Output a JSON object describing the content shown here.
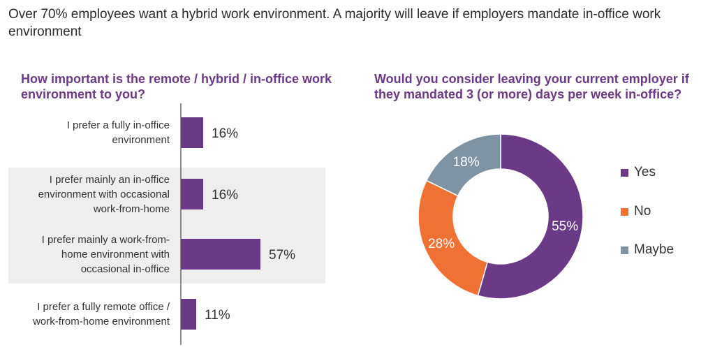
{
  "headline": "Over 70% employees want a hybrid work environment. A majority will leave if employers mandate in-office work environment",
  "chart_data": [
    {
      "type": "bar",
      "orientation": "horizontal",
      "title": "How important is the remote / hybrid / in-office work environment to you?",
      "categories": [
        "I prefer a fully in-office environment",
        "I prefer mainly an in-office environment with occasional work-from-home",
        "I prefer mainly a work-from-home environment with occasional in-office",
        "I prefer a fully remote office / work-from-home environment"
      ],
      "values": [
        16,
        16,
        57,
        11
      ],
      "value_labels": [
        "16%",
        "16%",
        "57%",
        "11%"
      ],
      "unit": "%",
      "xlim": [
        0,
        100
      ],
      "highlighted_rows": [
        1,
        2
      ],
      "bar_color": "#6b3a86",
      "highlight_color": "#eeeeee"
    },
    {
      "type": "pie",
      "style": "donut",
      "title": "Would you consider leaving your current employer if they mandated 3 (or more) days per week in-office?",
      "labels": [
        "Yes",
        "No",
        "Maybe"
      ],
      "values": [
        55,
        28,
        18
      ],
      "value_labels": [
        "55%",
        "28%",
        "18%"
      ],
      "colors": [
        "#6b3a86",
        "#ef7134",
        "#7f93a2"
      ],
      "label_colors": [
        "#ffffff",
        "#ffffff",
        "#ffffff"
      ],
      "legend_position": "right"
    }
  ]
}
